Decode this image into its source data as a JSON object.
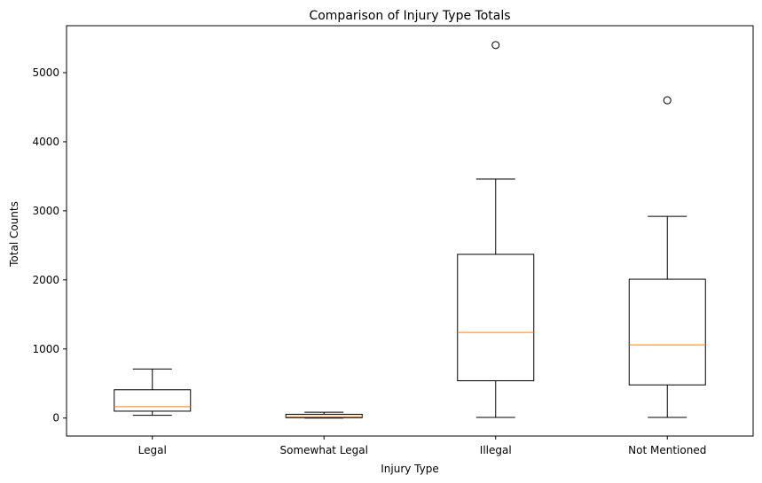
{
  "chart_data": {
    "type": "box",
    "title": "Comparison of Injury Type Totals",
    "xlabel": "Injury Type",
    "ylabel": "Total Counts",
    "ylim": [
      -260,
      5680
    ],
    "yticks": [
      0,
      1000,
      2000,
      3000,
      4000,
      5000
    ],
    "categories": [
      "Legal",
      "Somewhat Legal",
      "Illegal",
      "Not Mentioned"
    ],
    "boxes": [
      {
        "category": "Legal",
        "whisker_low": 40,
        "q1": 100,
        "median": 165,
        "q3": 410,
        "whisker_high": 710,
        "outliers": []
      },
      {
        "category": "Somewhat Legal",
        "whisker_low": 0,
        "q1": 5,
        "median": 20,
        "q3": 55,
        "whisker_high": 85,
        "outliers": []
      },
      {
        "category": "Illegal",
        "whisker_low": 10,
        "q1": 540,
        "median": 1240,
        "q3": 2370,
        "whisker_high": 3460,
        "outliers": [
          5400
        ]
      },
      {
        "category": "Not Mentioned",
        "whisker_low": 10,
        "q1": 480,
        "median": 1060,
        "q3": 2010,
        "whisker_high": 2920,
        "outliers": [
          4600
        ]
      }
    ],
    "colors": {
      "box": "#000000",
      "median": "#ff7f0e",
      "background": "#ffffff"
    },
    "grid": false,
    "legend": "none"
  }
}
